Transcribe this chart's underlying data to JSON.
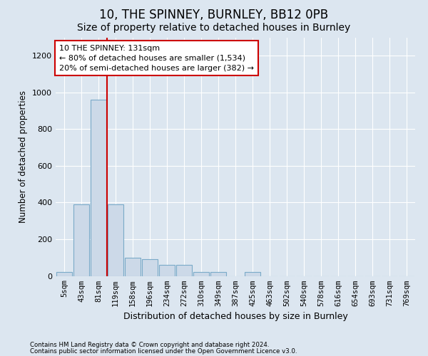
{
  "title1": "10, THE SPINNEY, BURNLEY, BB12 0PB",
  "title2": "Size of property relative to detached houses in Burnley",
  "xlabel": "Distribution of detached houses by size in Burnley",
  "ylabel": "Number of detached properties",
  "footer1": "Contains HM Land Registry data © Crown copyright and database right 2024.",
  "footer2": "Contains public sector information licensed under the Open Government Licence v3.0.",
  "bar_labels": [
    "5sqm",
    "43sqm",
    "81sqm",
    "119sqm",
    "158sqm",
    "196sqm",
    "234sqm",
    "272sqm",
    "310sqm",
    "349sqm",
    "387sqm",
    "425sqm",
    "463sqm",
    "502sqm",
    "540sqm",
    "578sqm",
    "616sqm",
    "654sqm",
    "693sqm",
    "731sqm",
    "769sqm"
  ],
  "bar_values": [
    20,
    390,
    960,
    390,
    100,
    90,
    60,
    60,
    20,
    20,
    0,
    20,
    0,
    0,
    0,
    0,
    0,
    0,
    0,
    0,
    0
  ],
  "bar_color": "#ccd9e8",
  "bar_edgecolor": "#7aaac8",
  "vline_x": 2.5,
  "vline_color": "#cc0000",
  "annotation_text": "10 THE SPINNEY: 131sqm\n← 80% of detached houses are smaller (1,534)\n20% of semi-detached houses are larger (382) →",
  "annotation_box_color": "#ffffff",
  "annotation_box_edgecolor": "#cc0000",
  "ylim": [
    0,
    1300
  ],
  "yticks": [
    0,
    200,
    400,
    600,
    800,
    1000,
    1200
  ],
  "background_color": "#dce6f0",
  "grid_color": "#ffffff",
  "title1_fontsize": 12,
  "title2_fontsize": 10,
  "annot_fontsize": 8
}
